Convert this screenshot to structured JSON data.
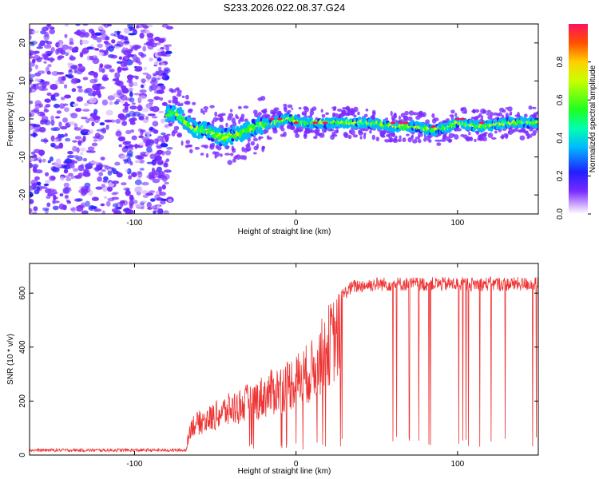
{
  "title": "S233.2026.022.08.37.G24",
  "chart_data": [
    {
      "type": "heatmap",
      "xlabel": "Height of straight line (km)",
      "ylabel": "Frequency (Hz)",
      "xlim": [
        -165,
        150
      ],
      "ylim": [
        -25,
        25
      ],
      "xticks": [
        -100,
        0,
        100
      ],
      "yticks": [
        -20,
        -10,
        0,
        10,
        20
      ],
      "colorbar": {
        "label": "Normalized spectral amplitude",
        "range": [
          0,
          1
        ],
        "ticks": [
          0.0,
          0.2,
          0.4,
          0.6,
          0.8
        ]
      },
      "ridge": [
        {
          "x": -80,
          "y": 1
        },
        {
          "x": -75,
          "y": 2
        },
        {
          "x": -70,
          "y": 0
        },
        {
          "x": -62,
          "y": -3
        },
        {
          "x": -55,
          "y": -3
        },
        {
          "x": -45,
          "y": -5
        },
        {
          "x": -35,
          "y": -4
        },
        {
          "x": -25,
          "y": -2
        },
        {
          "x": -15,
          "y": -1
        },
        {
          "x": -5,
          "y": 0
        },
        {
          "x": 5,
          "y": -1
        },
        {
          "x": 15,
          "y": -1
        },
        {
          "x": 30,
          "y": -1
        },
        {
          "x": 45,
          "y": -1
        },
        {
          "x": 60,
          "y": -2
        },
        {
          "x": 75,
          "y": -2
        },
        {
          "x": 85,
          "y": -3
        },
        {
          "x": 95,
          "y": -2
        },
        {
          "x": 100,
          "y": -1
        },
        {
          "x": 115,
          "y": -2
        },
        {
          "x": 130,
          "y": -1
        },
        {
          "x": 150,
          "y": -1
        }
      ]
    },
    {
      "type": "line",
      "xlabel": "Height of straight line (km)",
      "ylabel": "SNR (10 * v/v)",
      "xlim": [
        -165,
        150
      ],
      "ylim": [
        0,
        710
      ],
      "xticks": [
        -100,
        0,
        100
      ],
      "yticks": [
        0,
        200,
        400,
        600
      ],
      "color": "#ee3333",
      "envelope": [
        {
          "x": -165,
          "y": 20
        },
        {
          "x": -75,
          "y": 20
        },
        {
          "x": -68,
          "y": 40
        },
        {
          "x": -65,
          "y": 150
        },
        {
          "x": -55,
          "y": 180
        },
        {
          "x": -45,
          "y": 220
        },
        {
          "x": -35,
          "y": 250
        },
        {
          "x": -25,
          "y": 280
        },
        {
          "x": -15,
          "y": 320
        },
        {
          "x": -5,
          "y": 360
        },
        {
          "x": 0,
          "y": 380
        },
        {
          "x": 10,
          "y": 430
        },
        {
          "x": 20,
          "y": 560
        },
        {
          "x": 25,
          "y": 600
        },
        {
          "x": 35,
          "y": 650
        },
        {
          "x": 50,
          "y": 660
        },
        {
          "x": 150,
          "y": 660
        }
      ]
    }
  ]
}
